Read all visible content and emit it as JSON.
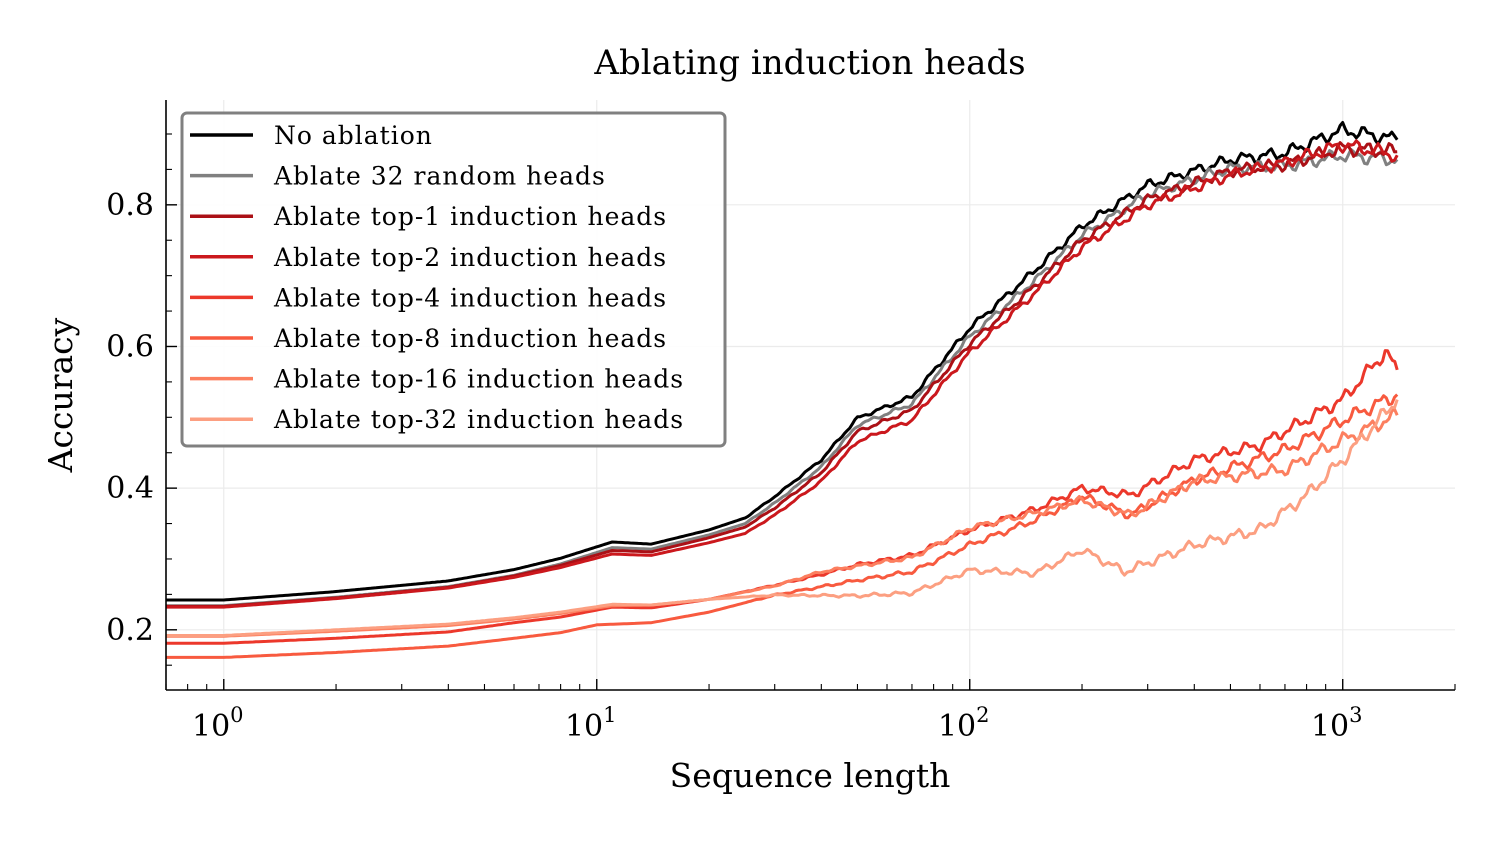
{
  "chart_data": {
    "type": "line",
    "title": "Ablating induction heads",
    "xlabel": "Sequence length",
    "ylabel": "Accuracy",
    "xscale": "log",
    "xlim": [
      0.7,
      2000
    ],
    "ylim": [
      0.115,
      0.948
    ],
    "xticks": [
      {
        "v": 1,
        "label": "10",
        "exp": "0"
      },
      {
        "v": 10,
        "label": "10",
        "exp": "1"
      },
      {
        "v": 100,
        "label": "10",
        "exp": "2"
      },
      {
        "v": 1000,
        "label": "10",
        "exp": "3"
      }
    ],
    "yticks": [
      {
        "v": 0.2,
        "label": "0.2"
      },
      {
        "v": 0.4,
        "label": "0.4"
      },
      {
        "v": 0.6,
        "label": "0.6"
      },
      {
        "v": 0.8,
        "label": "0.8"
      }
    ],
    "grid": true,
    "legend_position": "top-left",
    "series": [
      {
        "name": "No ablation",
        "color": "#000000",
        "points": [
          [
            0.7,
            0.242
          ],
          [
            1,
            0.242
          ],
          [
            2,
            0.254
          ],
          [
            4,
            0.269
          ],
          [
            6,
            0.285
          ],
          [
            8,
            0.301
          ],
          [
            11,
            0.324
          ],
          [
            14,
            0.321
          ],
          [
            20,
            0.341
          ],
          [
            25,
            0.358
          ],
          [
            30,
            0.388
          ],
          [
            40,
            0.44
          ],
          [
            50,
            0.499
          ],
          [
            70,
            0.529
          ],
          [
            100,
            0.626
          ],
          [
            150,
            0.708
          ],
          [
            200,
            0.77
          ],
          [
            300,
            0.828
          ],
          [
            500,
            0.864
          ],
          [
            700,
            0.873
          ],
          [
            1000,
            0.906
          ],
          [
            1400,
            0.892
          ]
        ]
      },
      {
        "name": "Ablate 32 random heads",
        "color": "#808080",
        "points": [
          [
            0.7,
            0.234
          ],
          [
            1,
            0.234
          ],
          [
            2,
            0.246
          ],
          [
            4,
            0.261
          ],
          [
            6,
            0.277
          ],
          [
            8,
            0.293
          ],
          [
            11,
            0.316
          ],
          [
            14,
            0.314
          ],
          [
            20,
            0.334
          ],
          [
            25,
            0.35
          ],
          [
            30,
            0.379
          ],
          [
            40,
            0.43
          ],
          [
            50,
            0.489
          ],
          [
            70,
            0.519
          ],
          [
            100,
            0.614
          ],
          [
            150,
            0.694
          ],
          [
            200,
            0.757
          ],
          [
            300,
            0.815
          ],
          [
            500,
            0.852
          ],
          [
            700,
            0.855
          ],
          [
            1000,
            0.87
          ],
          [
            1400,
            0.864
          ]
        ]
      },
      {
        "name": "Ablate top-1 induction heads",
        "color": "#ab1016",
        "points": [
          [
            0.7,
            0.233
          ],
          [
            1,
            0.233
          ],
          [
            2,
            0.245
          ],
          [
            4,
            0.26
          ],
          [
            6,
            0.276
          ],
          [
            8,
            0.291
          ],
          [
            11,
            0.312
          ],
          [
            14,
            0.31
          ],
          [
            20,
            0.33
          ],
          [
            25,
            0.345
          ],
          [
            30,
            0.372
          ],
          [
            40,
            0.422
          ],
          [
            50,
            0.48
          ],
          [
            70,
            0.51
          ],
          [
            100,
            0.604
          ],
          [
            150,
            0.686
          ],
          [
            200,
            0.75
          ],
          [
            300,
            0.808
          ],
          [
            500,
            0.848
          ],
          [
            700,
            0.857
          ],
          [
            1000,
            0.88
          ],
          [
            1400,
            0.875
          ]
        ]
      },
      {
        "name": "Ablate top-2 induction heads",
        "color": "#cb181d",
        "points": [
          [
            0.7,
            0.232
          ],
          [
            1,
            0.232
          ],
          [
            2,
            0.244
          ],
          [
            4,
            0.259
          ],
          [
            6,
            0.274
          ],
          [
            8,
            0.288
          ],
          [
            11,
            0.307
          ],
          [
            14,
            0.305
          ],
          [
            20,
            0.323
          ],
          [
            25,
            0.336
          ],
          [
            30,
            0.362
          ],
          [
            40,
            0.41
          ],
          [
            50,
            0.466
          ],
          [
            70,
            0.496
          ],
          [
            100,
            0.592
          ],
          [
            150,
            0.676
          ],
          [
            200,
            0.74
          ],
          [
            300,
            0.8
          ],
          [
            500,
            0.842
          ],
          [
            700,
            0.86
          ],
          [
            1000,
            0.885
          ],
          [
            1400,
            0.87
          ]
        ]
      },
      {
        "name": "Ablate top-4 induction heads",
        "color": "#ec382b",
        "points": [
          [
            0.7,
            0.181
          ],
          [
            1,
            0.181
          ],
          [
            2,
            0.188
          ],
          [
            4,
            0.197
          ],
          [
            6,
            0.21
          ],
          [
            8,
            0.218
          ],
          [
            11,
            0.232
          ],
          [
            14,
            0.231
          ],
          [
            20,
            0.243
          ],
          [
            30,
            0.263
          ],
          [
            40,
            0.278
          ],
          [
            50,
            0.292
          ],
          [
            70,
            0.305
          ],
          [
            100,
            0.341
          ],
          [
            150,
            0.37
          ],
          [
            200,
            0.4
          ],
          [
            270,
            0.39
          ],
          [
            400,
            0.44
          ],
          [
            600,
            0.461
          ],
          [
            1000,
            0.525
          ],
          [
            1300,
            0.592
          ],
          [
            1400,
            0.567
          ]
        ]
      },
      {
        "name": "Ablate top-8 induction heads",
        "color": "#f85a3f",
        "points": [
          [
            0.7,
            0.161
          ],
          [
            1,
            0.161
          ],
          [
            2,
            0.168
          ],
          [
            4,
            0.177
          ],
          [
            6,
            0.188
          ],
          [
            8,
            0.196
          ],
          [
            10,
            0.207
          ],
          [
            14,
            0.21
          ],
          [
            20,
            0.225
          ],
          [
            30,
            0.249
          ],
          [
            50,
            0.27
          ],
          [
            70,
            0.282
          ],
          [
            100,
            0.32
          ],
          [
            150,
            0.355
          ],
          [
            200,
            0.388
          ],
          [
            270,
            0.362
          ],
          [
            400,
            0.412
          ],
          [
            700,
            0.454
          ],
          [
            1000,
            0.496
          ],
          [
            1400,
            0.532
          ]
        ]
      },
      {
        "name": "Ablate top-16 induction heads",
        "color": "#fc7f5f",
        "points": [
          [
            0.7,
            0.191
          ],
          [
            1,
            0.191
          ],
          [
            2,
            0.198
          ],
          [
            4,
            0.206
          ],
          [
            6,
            0.215
          ],
          [
            8,
            0.223
          ],
          [
            11,
            0.234
          ],
          [
            14,
            0.235
          ],
          [
            20,
            0.243
          ],
          [
            30,
            0.262
          ],
          [
            40,
            0.282
          ],
          [
            70,
            0.302
          ],
          [
            100,
            0.344
          ],
          [
            150,
            0.365
          ],
          [
            200,
            0.383
          ],
          [
            270,
            0.362
          ],
          [
            400,
            0.41
          ],
          [
            700,
            0.426
          ],
          [
            1000,
            0.468
          ],
          [
            1400,
            0.503
          ]
        ]
      },
      {
        "name": "Ablate top-32 induction heads",
        "color": "#fc9f81",
        "points": [
          [
            0.7,
            0.192
          ],
          [
            1,
            0.192
          ],
          [
            2,
            0.2
          ],
          [
            4,
            0.208
          ],
          [
            6,
            0.217
          ],
          [
            8,
            0.225
          ],
          [
            11,
            0.236
          ],
          [
            14,
            0.235
          ],
          [
            20,
            0.243
          ],
          [
            30,
            0.249
          ],
          [
            50,
            0.248
          ],
          [
            70,
            0.252
          ],
          [
            100,
            0.284
          ],
          [
            150,
            0.28
          ],
          [
            200,
            0.313
          ],
          [
            260,
            0.282
          ],
          [
            400,
            0.32
          ],
          [
            600,
            0.341
          ],
          [
            800,
            0.39
          ],
          [
            1000,
            0.44
          ],
          [
            1400,
            0.525
          ]
        ]
      }
    ]
  }
}
